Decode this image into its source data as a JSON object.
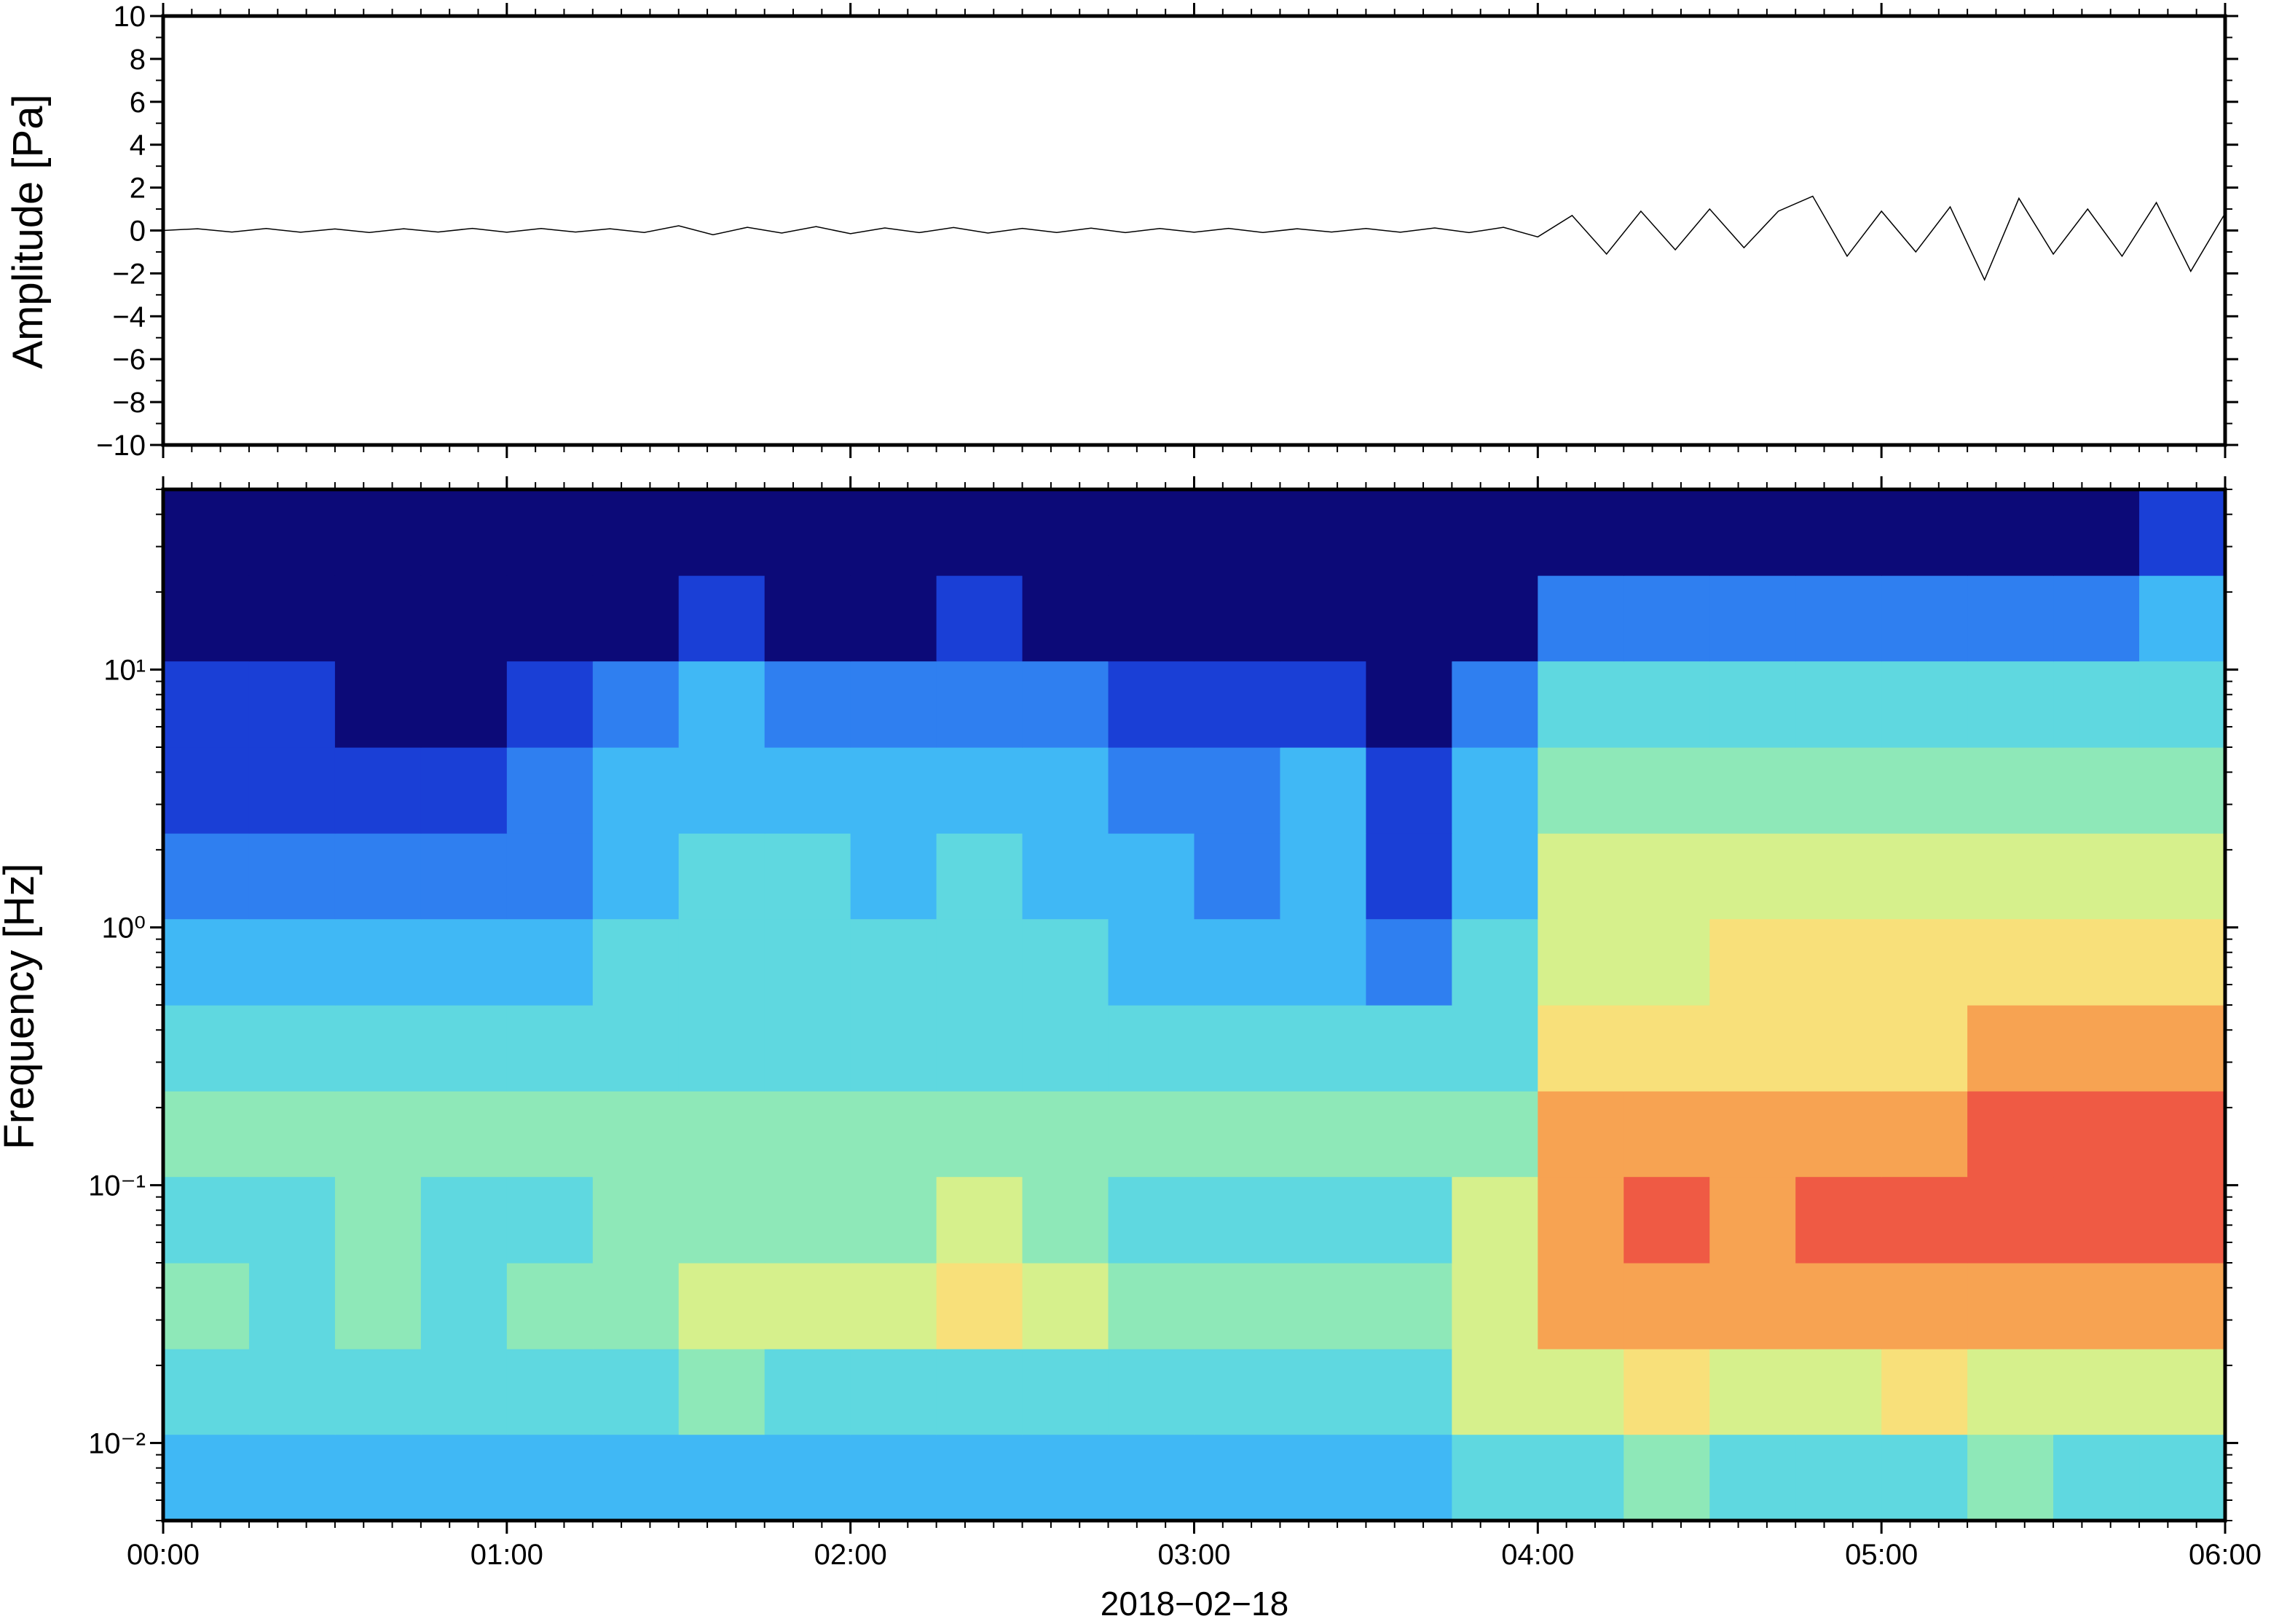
{
  "chart_data": [
    {
      "type": "line",
      "ylabel": "Amplitude [Pa]",
      "color": "#000000",
      "x": [
        0,
        0.1,
        0.2,
        0.3,
        0.4,
        0.5,
        0.6,
        0.7,
        0.8,
        0.9,
        1.0,
        1.1,
        1.2,
        1.3,
        1.4,
        1.5,
        1.6,
        1.7,
        1.8,
        1.9,
        2.0,
        2.1,
        2.2,
        2.3,
        2.4,
        2.5,
        2.6,
        2.7,
        2.8,
        2.9,
        3.0,
        3.1,
        3.2,
        3.3,
        3.4,
        3.5,
        3.6,
        3.7,
        3.8,
        3.9,
        4.0,
        4.1,
        4.2,
        4.3,
        4.4,
        4.5,
        4.6,
        4.7,
        4.8,
        4.9,
        5.0,
        5.1,
        5.2,
        5.3,
        5.4,
        5.5,
        5.6,
        5.7,
        5.8,
        5.9,
        6.0
      ],
      "values": [
        0,
        0.08,
        -0.07,
        0.09,
        -0.08,
        0.07,
        -0.09,
        0.08,
        -0.07,
        0.1,
        -0.08,
        0.09,
        -0.07,
        0.08,
        -0.09,
        0.22,
        -0.2,
        0.15,
        -0.12,
        0.18,
        -0.15,
        0.12,
        -0.1,
        0.14,
        -0.12,
        0.1,
        -0.09,
        0.11,
        -0.1,
        0.09,
        -0.08,
        0.1,
        -0.09,
        0.08,
        -0.07,
        0.09,
        -0.08,
        0.12,
        -0.1,
        0.15,
        -0.3,
        0.7,
        -1.1,
        0.9,
        -0.9,
        1.0,
        -0.8,
        0.9,
        1.6,
        -1.2,
        0.9,
        -1.0,
        1.1,
        -2.3,
        1.5,
        -1.1,
        1.0,
        -1.2,
        1.3,
        -1.9,
        0.8
      ],
      "xlim": [
        0,
        6
      ],
      "xticks": [
        0,
        1,
        2,
        3,
        4,
        5,
        6
      ],
      "ylim": [
        -10,
        10
      ],
      "yticks": [
        {
          "value": -10,
          "label": "−10"
        },
        {
          "value": -8,
          "label": "−8"
        },
        {
          "value": -6,
          "label": "−6"
        },
        {
          "value": -4,
          "label": "−4"
        },
        {
          "value": -2,
          "label": "−2"
        },
        0,
        2,
        4,
        6,
        8,
        10
      ]
    },
    {
      "type": "heatmap",
      "ylabel": "Frequency [Hz]",
      "xlabel": "2018−02−18",
      "ylog": true,
      "xlim": [
        0,
        6
      ],
      "xticks": [
        {
          "value": 0,
          "label": "00:00"
        },
        {
          "value": 1,
          "label": "01:00"
        },
        {
          "value": 2,
          "label": "02:00"
        },
        {
          "value": 3,
          "label": "03:00"
        },
        {
          "value": 4,
          "label": "04:00"
        },
        {
          "value": 5,
          "label": "05:00"
        },
        {
          "value": 6,
          "label": "06:00"
        }
      ],
      "ylim": [
        0.005,
        50
      ],
      "yticks": [
        {
          "value": 0.01,
          "label": "10⁻²"
        },
        {
          "value": 0.1,
          "label": "10⁻¹"
        },
        {
          "value": 1,
          "label": "10⁰"
        },
        {
          "value": 10,
          "label": "10¹"
        }
      ],
      "xbins": [
        0,
        0.25,
        0.5,
        0.75,
        1.0,
        1.25,
        1.5,
        1.75,
        2.0,
        2.25,
        2.5,
        2.75,
        3.0,
        3.25,
        3.5,
        3.75,
        4.0,
        4.25,
        4.5,
        4.75,
        5.0,
        5.25,
        5.5,
        5.75,
        6.0
      ],
      "ybins": [
        0.005,
        0.0108,
        0.0232,
        0.05,
        0.108,
        0.232,
        0.5,
        1.08,
        2.32,
        5,
        10.8,
        23.2,
        50
      ],
      "colorscale": [
        "#0c0a78",
        "#1a3fd6",
        "#2f7ff0",
        "#40b8f5",
        "#5fd8e0",
        "#8ee8b8",
        "#d6f08c",
        "#f8e07a",
        "#f7a352",
        "#ef5a44"
      ],
      "values": [
        [
          3,
          3,
          3,
          3,
          3,
          3,
          3,
          3,
          3,
          3,
          3,
          3,
          3,
          3,
          3,
          4,
          4,
          5,
          4,
          4,
          4,
          5,
          4,
          4
        ],
        [
          4,
          4,
          4,
          4,
          4,
          4,
          5,
          4,
          4,
          4,
          4,
          4,
          4,
          4,
          4,
          6,
          6,
          7,
          6,
          6,
          7,
          6,
          6,
          6
        ],
        [
          5,
          4,
          5,
          4,
          5,
          5,
          6,
          6,
          6,
          7,
          6,
          5,
          5,
          5,
          5,
          6,
          8,
          8,
          8,
          8,
          8,
          8,
          8,
          8
        ],
        [
          4,
          4,
          5,
          4,
          4,
          5,
          5,
          5,
          5,
          6,
          5,
          4,
          4,
          4,
          4,
          6,
          8,
          9,
          8,
          9,
          9,
          9,
          9,
          9
        ],
        [
          5,
          5,
          5,
          5,
          5,
          5,
          5,
          5,
          5,
          5,
          5,
          5,
          5,
          5,
          5,
          5,
          8,
          8,
          8,
          8,
          8,
          9,
          9,
          9
        ],
        [
          4,
          4,
          4,
          4,
          4,
          4,
          4,
          4,
          4,
          4,
          4,
          4,
          4,
          4,
          4,
          4,
          7,
          7,
          7,
          7,
          7,
          8,
          8,
          8
        ],
        [
          3,
          3,
          3,
          3,
          3,
          4,
          4,
          4,
          4,
          4,
          4,
          3,
          3,
          3,
          2,
          4,
          6,
          6,
          7,
          7,
          7,
          7,
          7,
          7
        ],
        [
          2,
          2,
          2,
          2,
          2,
          3,
          4,
          4,
          3,
          4,
          3,
          3,
          2,
          3,
          1,
          3,
          6,
          6,
          6,
          6,
          6,
          6,
          6,
          6
        ],
        [
          1,
          1,
          1,
          1,
          2,
          3,
          3,
          3,
          3,
          3,
          3,
          2,
          2,
          3,
          1,
          3,
          5,
          5,
          5,
          5,
          5,
          5,
          5,
          5
        ],
        [
          1,
          1,
          0,
          0,
          1,
          2,
          3,
          2,
          2,
          2,
          2,
          1,
          1,
          1,
          0,
          2,
          4,
          4,
          4,
          4,
          4,
          4,
          4,
          4
        ],
        [
          0,
          0,
          0,
          0,
          0,
          0,
          1,
          0,
          0,
          1,
          0,
          0,
          0,
          0,
          0,
          0,
          2,
          2,
          2,
          2,
          2,
          2,
          2,
          3
        ],
        [
          0,
          0,
          0,
          0,
          0,
          0,
          0,
          0,
          0,
          0,
          0,
          0,
          0,
          0,
          0,
          0,
          0,
          0,
          0,
          0,
          0,
          0,
          0,
          1
        ]
      ]
    }
  ]
}
